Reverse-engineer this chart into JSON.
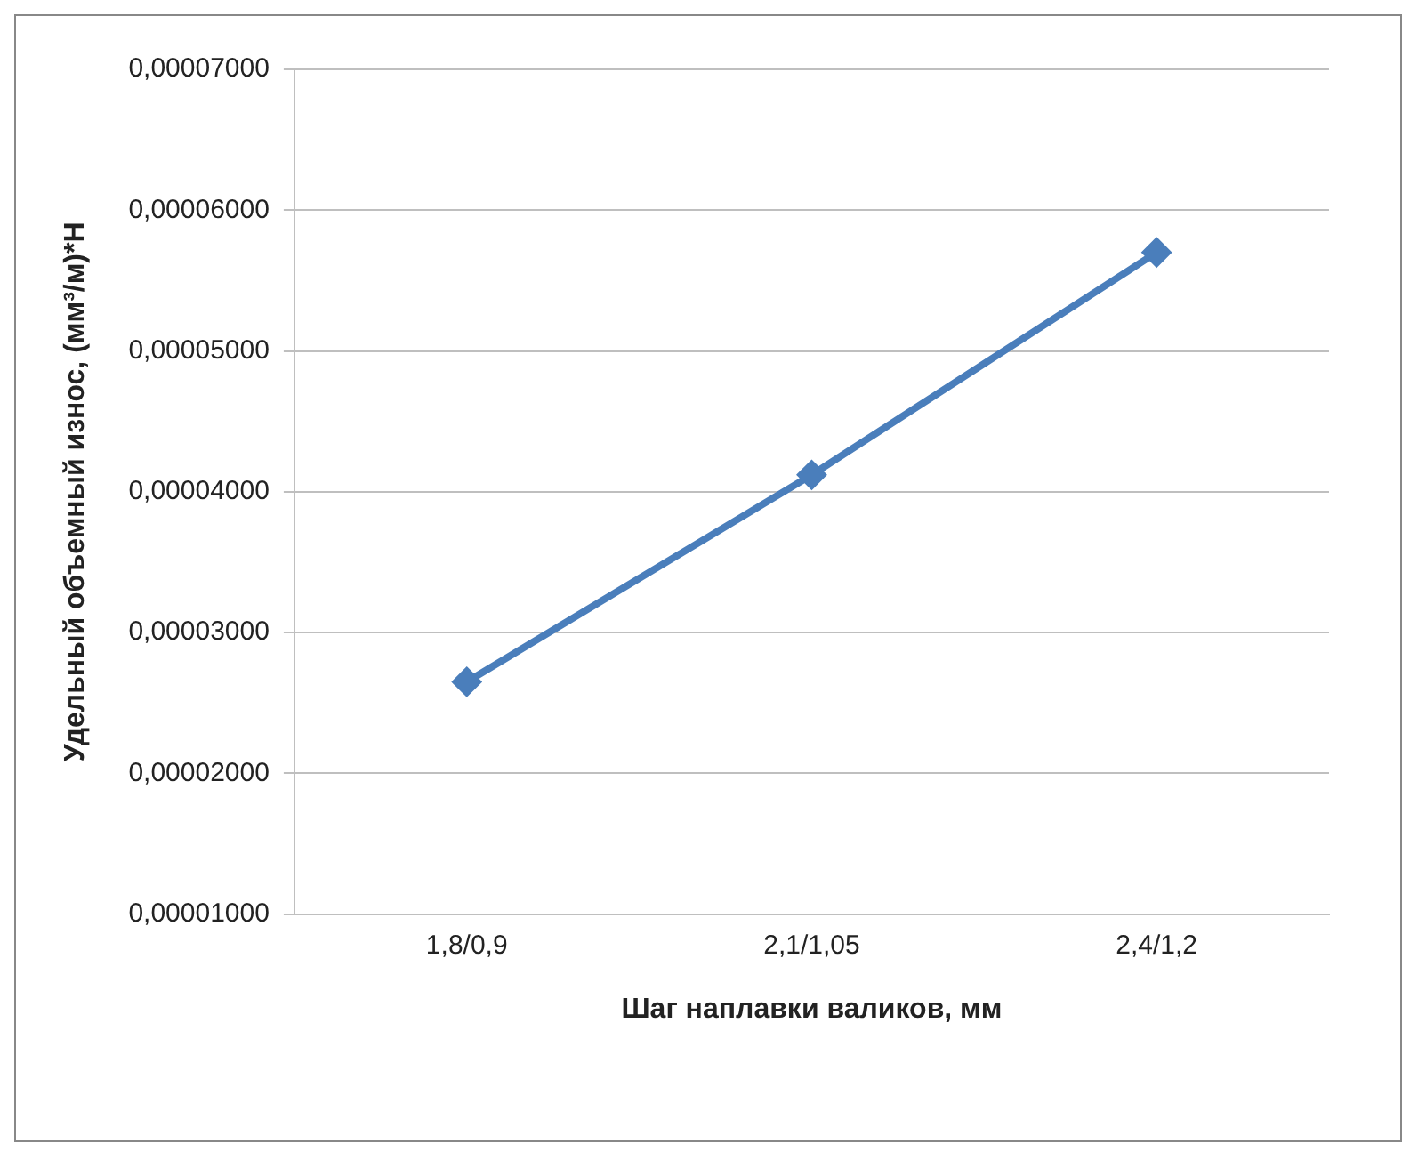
{
  "chart_data": {
    "type": "line",
    "xlabel": "Шаг наплавки валиков, мм",
    "ylabel": "Удельный объемный износ, (мм³/м)*Н",
    "categories": [
      "1,8/0,9",
      "2,1/1,05",
      "2,4/1,2"
    ],
    "series": [
      {
        "color": "#4a7ebb",
        "values": [
          2.65e-05,
          4.12e-05,
          5.7e-05
        ]
      }
    ],
    "ylim": [
      1e-05,
      7e-05
    ],
    "yticks": [
      {
        "value": 1e-05,
        "label": "0,00001000"
      },
      {
        "value": 2e-05,
        "label": "0,00002000"
      },
      {
        "value": 3e-05,
        "label": "0,00003000"
      },
      {
        "value": 4e-05,
        "label": "0,00004000"
      },
      {
        "value": 5e-05,
        "label": "0,00005000"
      },
      {
        "value": 6e-05,
        "label": "0,00006000"
      },
      {
        "value": 7e-05,
        "label": "0,00007000"
      }
    ],
    "grid": "y",
    "legend": false,
    "marker": "diamond",
    "line_style": "solid"
  }
}
